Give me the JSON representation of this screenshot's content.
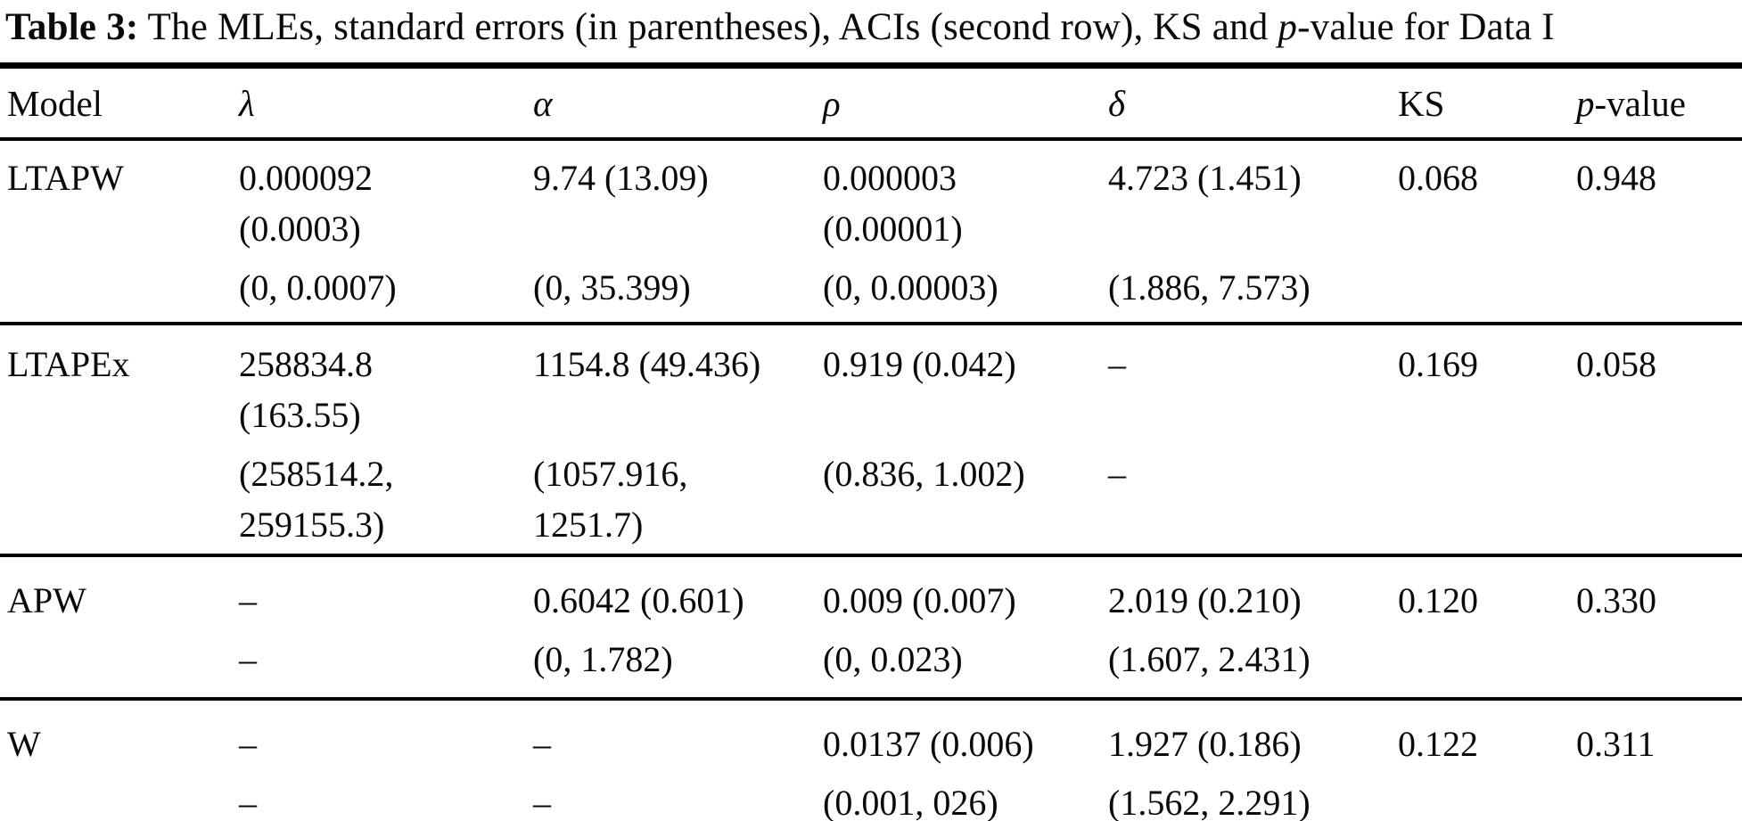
{
  "title": {
    "label_bold": "Table 3:",
    "text_mid": " The MLEs, standard errors (in parentheses), ACIs (second row), KS and ",
    "p_italic": "p",
    "text_end": "-value for Data I"
  },
  "header": {
    "model": "Model",
    "lambda": "λ",
    "alpha": "α",
    "rho": "ρ",
    "delta": "δ",
    "ks": "KS",
    "p_italic": "p",
    "p_rest": "-value"
  },
  "rows": [
    {
      "model": "LTAPW",
      "lambda": {
        "est": [
          "0.000092",
          "(0.0003)"
        ],
        "aci": [
          "(0, 0.0007)"
        ]
      },
      "alpha": {
        "est": [
          "9.74 (13.09)"
        ],
        "aci": [
          "(0, 35.399)"
        ]
      },
      "rho": {
        "est": [
          "0.000003",
          "(0.00001)"
        ],
        "aci": [
          "(0, 0.00003)"
        ]
      },
      "delta": {
        "est": [
          "4.723 (1.451)"
        ],
        "aci": [
          "(1.886, 7.573)"
        ]
      },
      "ks": "0.068",
      "p": "0.948"
    },
    {
      "model": "LTAPEx",
      "lambda": {
        "est": [
          "258834.8",
          "(163.55)"
        ],
        "aci": [
          "(258514.2,",
          "259155.3)"
        ]
      },
      "alpha": {
        "est": [
          "1154.8 (49.436)"
        ],
        "aci": [
          "(1057.916,",
          "1251.7)"
        ]
      },
      "rho": {
        "est": [
          "0.919 (0.042)"
        ],
        "aci": [
          "(0.836, 1.002)"
        ]
      },
      "delta": {
        "est": [
          "–"
        ],
        "aci": [
          "–"
        ]
      },
      "ks": "0.169",
      "p": "0.058"
    },
    {
      "model": "APW",
      "lambda": {
        "est": [
          "–"
        ],
        "aci": [
          "–"
        ]
      },
      "alpha": {
        "est": [
          "0.6042 (0.601)"
        ],
        "aci": [
          "(0, 1.782)"
        ]
      },
      "rho": {
        "est": [
          "0.009 (0.007)"
        ],
        "aci": [
          "(0, 0.023)"
        ]
      },
      "delta": {
        "est": [
          "2.019 (0.210)"
        ],
        "aci": [
          "(1.607, 2.431)"
        ]
      },
      "ks": "0.120",
      "p": "0.330"
    },
    {
      "model": "W",
      "lambda": {
        "est": [
          "–"
        ],
        "aci": [
          "–"
        ]
      },
      "alpha": {
        "est": [
          "–"
        ],
        "aci": [
          "–"
        ]
      },
      "rho": {
        "est": [
          "0.0137 (0.006)"
        ],
        "aci": [
          "(0.001, 026)"
        ]
      },
      "delta": {
        "est": [
          "1.927 (0.186)"
        ],
        "aci": [
          "(1.562, 2.291)"
        ]
      },
      "ks": "0.122",
      "p": "0.311"
    }
  ]
}
